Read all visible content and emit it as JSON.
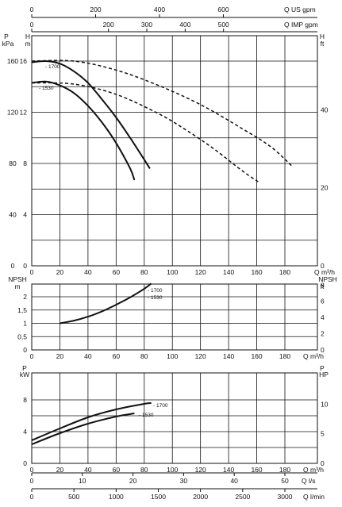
{
  "chart_data": {
    "type": "line",
    "flow_axis": {
      "unit": "Q m³/h",
      "ticks": [
        0,
        20,
        40,
        60,
        80,
        100,
        120,
        140,
        160,
        180
      ],
      "range": [
        0,
        180
      ]
    },
    "top_axes": [
      {
        "unit": "Q US gpm",
        "ticks": [
          0,
          200,
          400,
          600
        ],
        "factor": 4.4029
      },
      {
        "unit": "Q IMP gpm",
        "ticks": [
          0,
          200,
          300,
          400,
          500
        ],
        "labels": [
          "0",
          "200",
          "300",
          "400",
          "500"
        ],
        "factor": 3.6662
      }
    ],
    "bottom_axes": [
      {
        "unit": "Q l/s",
        "ticks": [
          0,
          10,
          20,
          30,
          40,
          50
        ],
        "factor": 0.27778
      },
      {
        "unit": "Q l/min",
        "ticks": [
          0,
          500,
          1000,
          1500,
          2000,
          2500,
          3000
        ],
        "factor": 16.6667
      }
    ],
    "panels": [
      {
        "name": "head",
        "left_label_a": "P",
        "left_label_b": "kPa",
        "left_label_c": "H",
        "left_label_d": "m",
        "right_label_a": "H",
        "right_label_b": "ft",
        "ylim": [
          0,
          16
        ],
        "left_ticks_kpa": [
          0,
          40,
          80,
          120,
          160
        ],
        "left_ticks_m": [
          0,
          4,
          8,
          12,
          16
        ],
        "right_ticks_ft": [
          0,
          20,
          40
        ],
        "series": [
          {
            "name": "1700",
            "style": "solid",
            "x": [
              0,
              10,
              20,
              30,
              40,
              50,
              60,
              70,
              80,
              84
            ],
            "y": [
              15.9,
              16.0,
              15.8,
              15.2,
              14.3,
              13.0,
              11.6,
              10.0,
              8.3,
              7.6
            ]
          },
          {
            "name": "1530",
            "style": "solid",
            "x": [
              0,
              10,
              20,
              30,
              40,
              50,
              60,
              70,
              73
            ],
            "y": [
              14.3,
              14.4,
              14.1,
              13.5,
              12.5,
              11.2,
              9.6,
              7.6,
              6.7
            ]
          },
          {
            "name": "",
            "style": "dashed",
            "x": [
              0,
              30,
              60,
              90,
              120,
              150,
              170,
              185
            ],
            "y": [
              16.0,
              16.0,
              15.3,
              14.1,
              12.6,
              10.7,
              9.3,
              7.8
            ]
          },
          {
            "name": "",
            "style": "dashed",
            "x": [
              0,
              30,
              60,
              90,
              110,
              130,
              150,
              162
            ],
            "y": [
              14.3,
              14.2,
              13.4,
              11.9,
              10.6,
              9.1,
              7.4,
              6.5
            ]
          }
        ],
        "labels": [
          "1700",
          "1530"
        ]
      },
      {
        "name": "npsh",
        "left_label_a": "NPSH",
        "left_label_b": "m",
        "right_label_a": "NPSH",
        "right_label_b": "ft",
        "ylim": [
          0,
          2.6
        ],
        "left_ticks": [
          0,
          0.5,
          1,
          1.5,
          2
        ],
        "left_tick_labels": [
          "0",
          "0,5",
          "1",
          "1,5",
          "2"
        ],
        "right_ticks_ft": [
          0,
          2,
          4,
          6,
          8
        ],
        "series": [
          {
            "name": "1700 / 1530",
            "style": "solid",
            "x": [
              20,
              30,
              40,
              50,
              60,
              70,
              80,
              85
            ],
            "y": [
              1.0,
              1.1,
              1.25,
              1.45,
              1.7,
              1.98,
              2.3,
              2.5
            ]
          }
        ],
        "labels": [
          "1700",
          "1530"
        ]
      },
      {
        "name": "power",
        "left_label_a": "P",
        "left_label_b": "kW",
        "right_label_a": "P",
        "right_label_b": "HP",
        "ylim": [
          0,
          10
        ],
        "left_ticks": [
          0,
          4,
          8
        ],
        "right_ticks_hp": [
          0,
          5,
          10
        ],
        "series": [
          {
            "name": "1700",
            "style": "solid",
            "x": [
              0,
              20,
              40,
              60,
              80,
              85
            ],
            "y": [
              2.9,
              4.4,
              5.8,
              6.8,
              7.5,
              7.6
            ]
          },
          {
            "name": "1530",
            "style": "solid",
            "x": [
              0,
              20,
              40,
              60,
              73
            ],
            "y": [
              2.4,
              3.8,
              5.0,
              5.9,
              6.3
            ]
          }
        ],
        "labels": [
          "1700",
          "1530"
        ]
      }
    ]
  }
}
